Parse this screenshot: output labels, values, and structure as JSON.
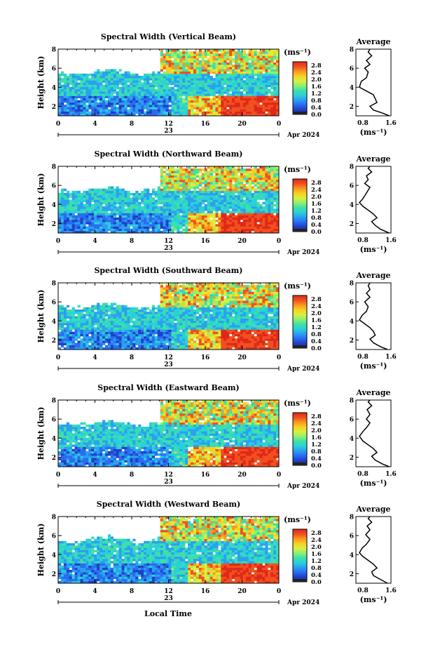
{
  "figure": {
    "x_axis_title": "Local Time",
    "date_center_label": "23",
    "date_right_label": "Apr 2024",
    "colorbar_unit": "(ms⁻¹)",
    "profile_title": "Average",
    "profile_xlabel": "(ms⁻¹)"
  },
  "colormap": [
    "#2a2a8c",
    "#1f3fc8",
    "#2a6cf0",
    "#2aa0f0",
    "#2ad0d8",
    "#3ee0a8",
    "#8ef070",
    "#d8f040",
    "#f8d020",
    "#f89820",
    "#f05020",
    "#e02818"
  ],
  "chart_data": [
    {
      "type": "heatmap",
      "title": "Spectral Width (Vertical Beam)",
      "xlabel": "",
      "ylabel": "Height (km)",
      "x_ticks": [
        "0",
        "4",
        "8",
        "12",
        "16",
        "20",
        "0"
      ],
      "xlim": [
        0,
        24
      ],
      "y_ticks": [
        "2",
        "4",
        "6",
        "8"
      ],
      "ylim": [
        1,
        8
      ],
      "colorbar_ticks": [
        "0.0",
        "0.4",
        "0.8",
        "1.2",
        "1.6",
        "2.0",
        "2.4",
        "2.8"
      ],
      "clim": [
        0,
        3
      ],
      "profile": {
        "title": "Average",
        "x_ticks": [
          "0.8",
          "1.6"
        ],
        "xlim": [
          0.6,
          1.6
        ],
        "y_ticks": [
          "2",
          "4",
          "6",
          "8"
        ],
        "points": [
          [
            1.55,
            1.0
          ],
          [
            1.35,
            1.3
          ],
          [
            1.1,
            1.6
          ],
          [
            1.0,
            2.0
          ],
          [
            1.2,
            2.4
          ],
          [
            1.15,
            2.8
          ],
          [
            1.1,
            3.2
          ],
          [
            0.9,
            3.6
          ],
          [
            0.7,
            4.0
          ],
          [
            0.75,
            4.6
          ],
          [
            0.9,
            5.0
          ],
          [
            0.95,
            5.6
          ],
          [
            0.85,
            6.0
          ],
          [
            1.0,
            6.4
          ],
          [
            0.9,
            6.8
          ],
          [
            1.05,
            7.3
          ],
          [
            0.95,
            7.7
          ],
          [
            1.0,
            8.0
          ]
        ]
      }
    },
    {
      "type": "heatmap",
      "title": "Spectral Width (Northward Beam)",
      "xlabel": "",
      "ylabel": "Height (km)",
      "x_ticks": [
        "0",
        "4",
        "8",
        "12",
        "16",
        "20",
        "0"
      ],
      "xlim": [
        0,
        24
      ],
      "y_ticks": [
        "2",
        "4",
        "6",
        "8"
      ],
      "ylim": [
        1,
        8
      ],
      "colorbar_ticks": [
        "0.0",
        "0.4",
        "0.8",
        "1.2",
        "1.6",
        "2.0",
        "2.4",
        "2.8"
      ],
      "clim": [
        0,
        3
      ],
      "profile": {
        "title": "Average",
        "x_ticks": [
          "0.8",
          "1.6"
        ],
        "xlim": [
          0.6,
          1.6
        ],
        "y_ticks": [
          "2",
          "4",
          "6",
          "8"
        ],
        "points": [
          [
            1.55,
            1.0
          ],
          [
            1.3,
            1.4
          ],
          [
            1.15,
            1.8
          ],
          [
            1.05,
            2.2
          ],
          [
            1.2,
            2.6
          ],
          [
            1.1,
            3.0
          ],
          [
            0.95,
            3.4
          ],
          [
            0.8,
            3.8
          ],
          [
            0.7,
            4.2
          ],
          [
            0.8,
            4.6
          ],
          [
            0.9,
            5.2
          ],
          [
            1.0,
            5.8
          ],
          [
            0.85,
            6.2
          ],
          [
            0.95,
            6.6
          ],
          [
            0.9,
            7.0
          ],
          [
            1.05,
            7.4
          ],
          [
            0.95,
            7.8
          ],
          [
            1.0,
            8.0
          ]
        ]
      }
    },
    {
      "type": "heatmap",
      "title": "Spectral Width (Southward Beam)",
      "xlabel": "",
      "ylabel": "Height (km)",
      "x_ticks": [
        "0",
        "4",
        "8",
        "12",
        "16",
        "20",
        "0"
      ],
      "xlim": [
        0,
        24
      ],
      "y_ticks": [
        "2",
        "4",
        "6",
        "8"
      ],
      "ylim": [
        1,
        8
      ],
      "colorbar_ticks": [
        "0.0",
        "0.4",
        "0.8",
        "1.2",
        "1.6",
        "2.0",
        "2.4",
        "2.8"
      ],
      "clim": [
        0,
        3
      ],
      "profile": {
        "title": "Average",
        "x_ticks": [
          "0.8",
          "1.6"
        ],
        "xlim": [
          0.6,
          1.6
        ],
        "y_ticks": [
          "2",
          "4",
          "6",
          "8"
        ],
        "points": [
          [
            1.5,
            1.0
          ],
          [
            1.3,
            1.3
          ],
          [
            1.1,
            1.7
          ],
          [
            1.0,
            2.1
          ],
          [
            1.15,
            2.5
          ],
          [
            1.1,
            2.9
          ],
          [
            1.0,
            3.3
          ],
          [
            0.85,
            3.7
          ],
          [
            0.7,
            4.1
          ],
          [
            0.78,
            4.6
          ],
          [
            0.9,
            5.0
          ],
          [
            0.95,
            5.5
          ],
          [
            0.85,
            6.0
          ],
          [
            1.0,
            6.5
          ],
          [
            0.9,
            6.9
          ],
          [
            1.0,
            7.3
          ],
          [
            0.95,
            7.7
          ],
          [
            1.0,
            8.0
          ]
        ]
      }
    },
    {
      "type": "heatmap",
      "title": "Spectral Width (Eastward Beam)",
      "xlabel": "",
      "ylabel": "Height (km)",
      "x_ticks": [
        "0",
        "4",
        "8",
        "12",
        "16",
        "20",
        "0"
      ],
      "xlim": [
        0,
        24
      ],
      "y_ticks": [
        "2",
        "4",
        "6",
        "8"
      ],
      "ylim": [
        1,
        8
      ],
      "colorbar_ticks": [
        "0.0",
        "0.4",
        "0.8",
        "1.2",
        "1.6",
        "2.0",
        "2.4",
        "2.8"
      ],
      "clim": [
        0,
        3
      ],
      "profile": {
        "title": "Average",
        "x_ticks": [
          "0.8",
          "1.6"
        ],
        "xlim": [
          0.6,
          1.6
        ],
        "y_ticks": [
          "2",
          "4",
          "6",
          "8"
        ],
        "points": [
          [
            1.55,
            1.0
          ],
          [
            1.35,
            1.3
          ],
          [
            1.15,
            1.7
          ],
          [
            1.05,
            2.1
          ],
          [
            1.2,
            2.5
          ],
          [
            1.1,
            2.9
          ],
          [
            0.95,
            3.3
          ],
          [
            0.8,
            3.7
          ],
          [
            0.7,
            4.2
          ],
          [
            0.8,
            4.7
          ],
          [
            0.9,
            5.1
          ],
          [
            1.0,
            5.6
          ],
          [
            0.9,
            6.0
          ],
          [
            1.0,
            6.5
          ],
          [
            0.92,
            7.0
          ],
          [
            1.05,
            7.4
          ],
          [
            0.95,
            7.8
          ],
          [
            1.0,
            8.0
          ]
        ]
      }
    },
    {
      "type": "heatmap",
      "title": "Spectral Width (Westward Beam)",
      "xlabel": "Local Time",
      "ylabel": "Height (km)",
      "x_ticks": [
        "0",
        "4",
        "8",
        "12",
        "16",
        "20",
        "0"
      ],
      "xlim": [
        0,
        24
      ],
      "y_ticks": [
        "2",
        "4",
        "6",
        "8"
      ],
      "ylim": [
        1,
        8
      ],
      "colorbar_ticks": [
        "0.0",
        "0.4",
        "0.8",
        "1.2",
        "1.6",
        "2.0",
        "2.4",
        "2.8"
      ],
      "clim": [
        0,
        3
      ],
      "profile": {
        "title": "Average",
        "x_ticks": [
          "0.8",
          "1.6"
        ],
        "xlim": [
          0.6,
          1.6
        ],
        "y_ticks": [
          "2",
          "4",
          "6",
          "8"
        ],
        "points": [
          [
            1.5,
            1.0
          ],
          [
            1.3,
            1.4
          ],
          [
            1.1,
            1.8
          ],
          [
            1.05,
            2.2
          ],
          [
            1.2,
            2.6
          ],
          [
            1.1,
            3.0
          ],
          [
            0.95,
            3.4
          ],
          [
            0.8,
            3.8
          ],
          [
            0.7,
            4.2
          ],
          [
            0.78,
            4.7
          ],
          [
            0.9,
            5.1
          ],
          [
            1.0,
            5.6
          ],
          [
            0.88,
            6.1
          ],
          [
            1.0,
            6.6
          ],
          [
            0.92,
            7.0
          ],
          [
            1.05,
            7.4
          ],
          [
            0.95,
            7.8
          ],
          [
            1.0,
            8.0
          ]
        ]
      }
    }
  ]
}
